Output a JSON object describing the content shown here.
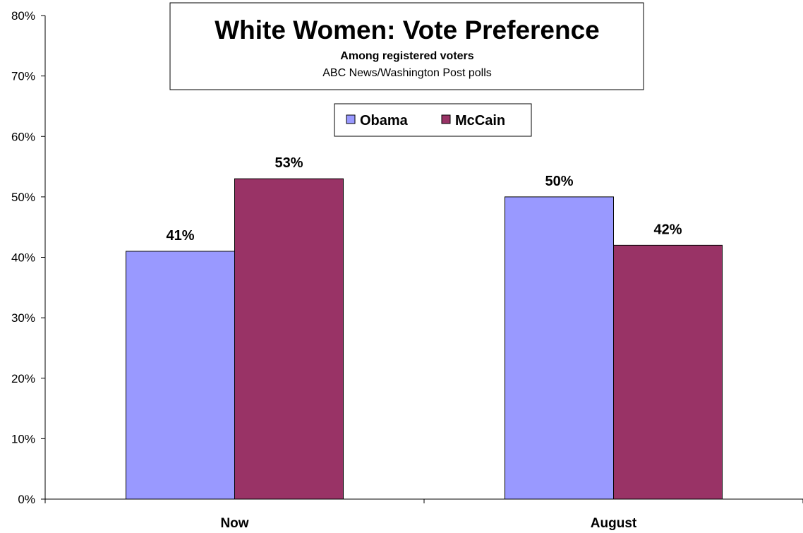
{
  "chart_data": {
    "type": "bar",
    "title": "White Women: Vote Preference",
    "subtitle": "Among registered voters",
    "source": "ABC News/Washington Post polls",
    "categories": [
      "Now",
      "August"
    ],
    "series": [
      {
        "name": "Obama",
        "values": [
          41,
          50
        ],
        "color": "#9999ff",
        "labels": [
          "41%",
          "50%"
        ]
      },
      {
        "name": "McCain",
        "values": [
          53,
          42
        ],
        "color": "#993366",
        "labels": [
          "53%",
          "42%"
        ]
      }
    ],
    "ylim": [
      0,
      80
    ],
    "yticks": [
      0,
      10,
      20,
      30,
      40,
      50,
      60,
      70,
      80
    ],
    "ytick_labels": [
      "0%",
      "10%",
      "20%",
      "30%",
      "40%",
      "50%",
      "60%",
      "70%",
      "80%"
    ],
    "xlabel": "",
    "ylabel": "",
    "grid": false,
    "legend_position": "top-center"
  }
}
